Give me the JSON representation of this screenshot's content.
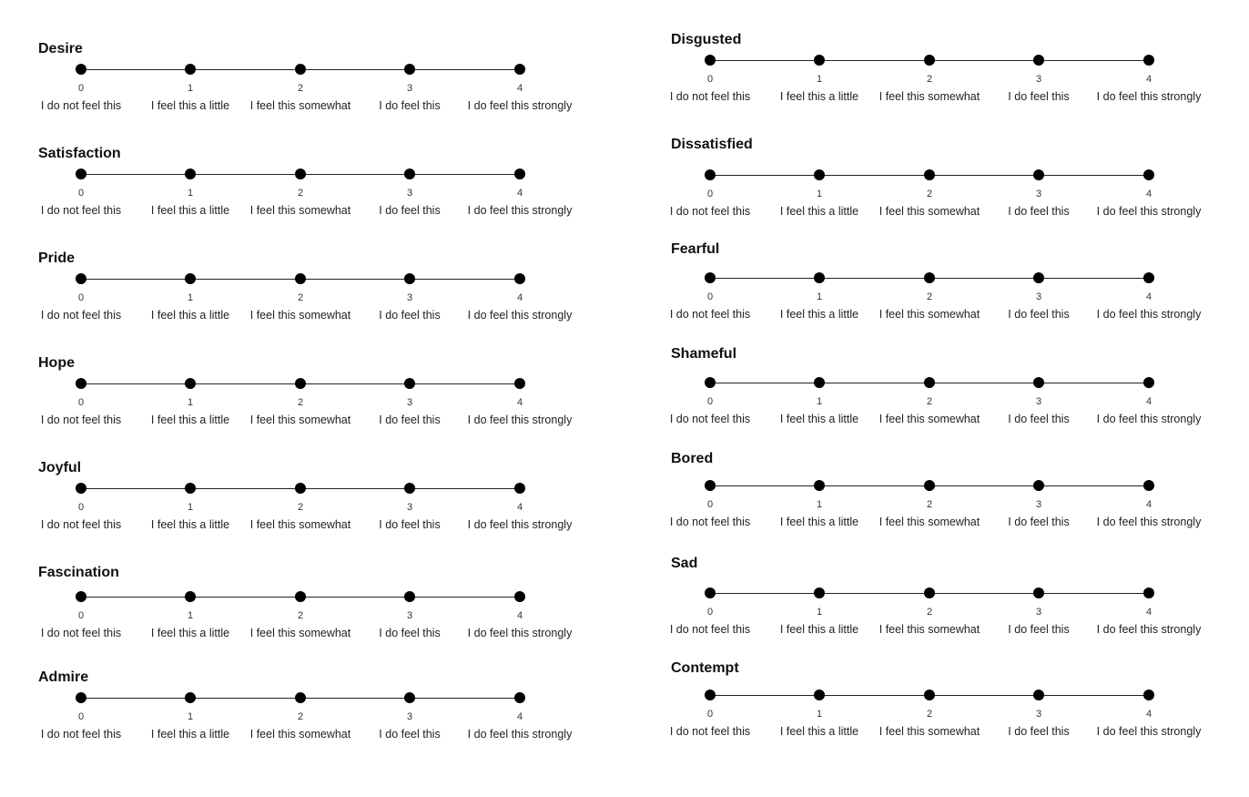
{
  "options": [
    {
      "value": "0",
      "label": "I do not feel this"
    },
    {
      "value": "1",
      "label": "I feel this a little"
    },
    {
      "value": "2",
      "label": "I feel this somewhat"
    },
    {
      "value": "3",
      "label": "I do feel this"
    },
    {
      "value": "4",
      "label": "I do feel this strongly"
    }
  ],
  "left_scales": [
    "Desire",
    "Satisfaction",
    "Pride",
    "Hope",
    "Joyful",
    "Fascination",
    "Admire"
  ],
  "right_scales": [
    "Disgusted",
    "Dissatisfied",
    "Fearful",
    "Shameful",
    "Bored",
    "Sad",
    "Contempt"
  ]
}
